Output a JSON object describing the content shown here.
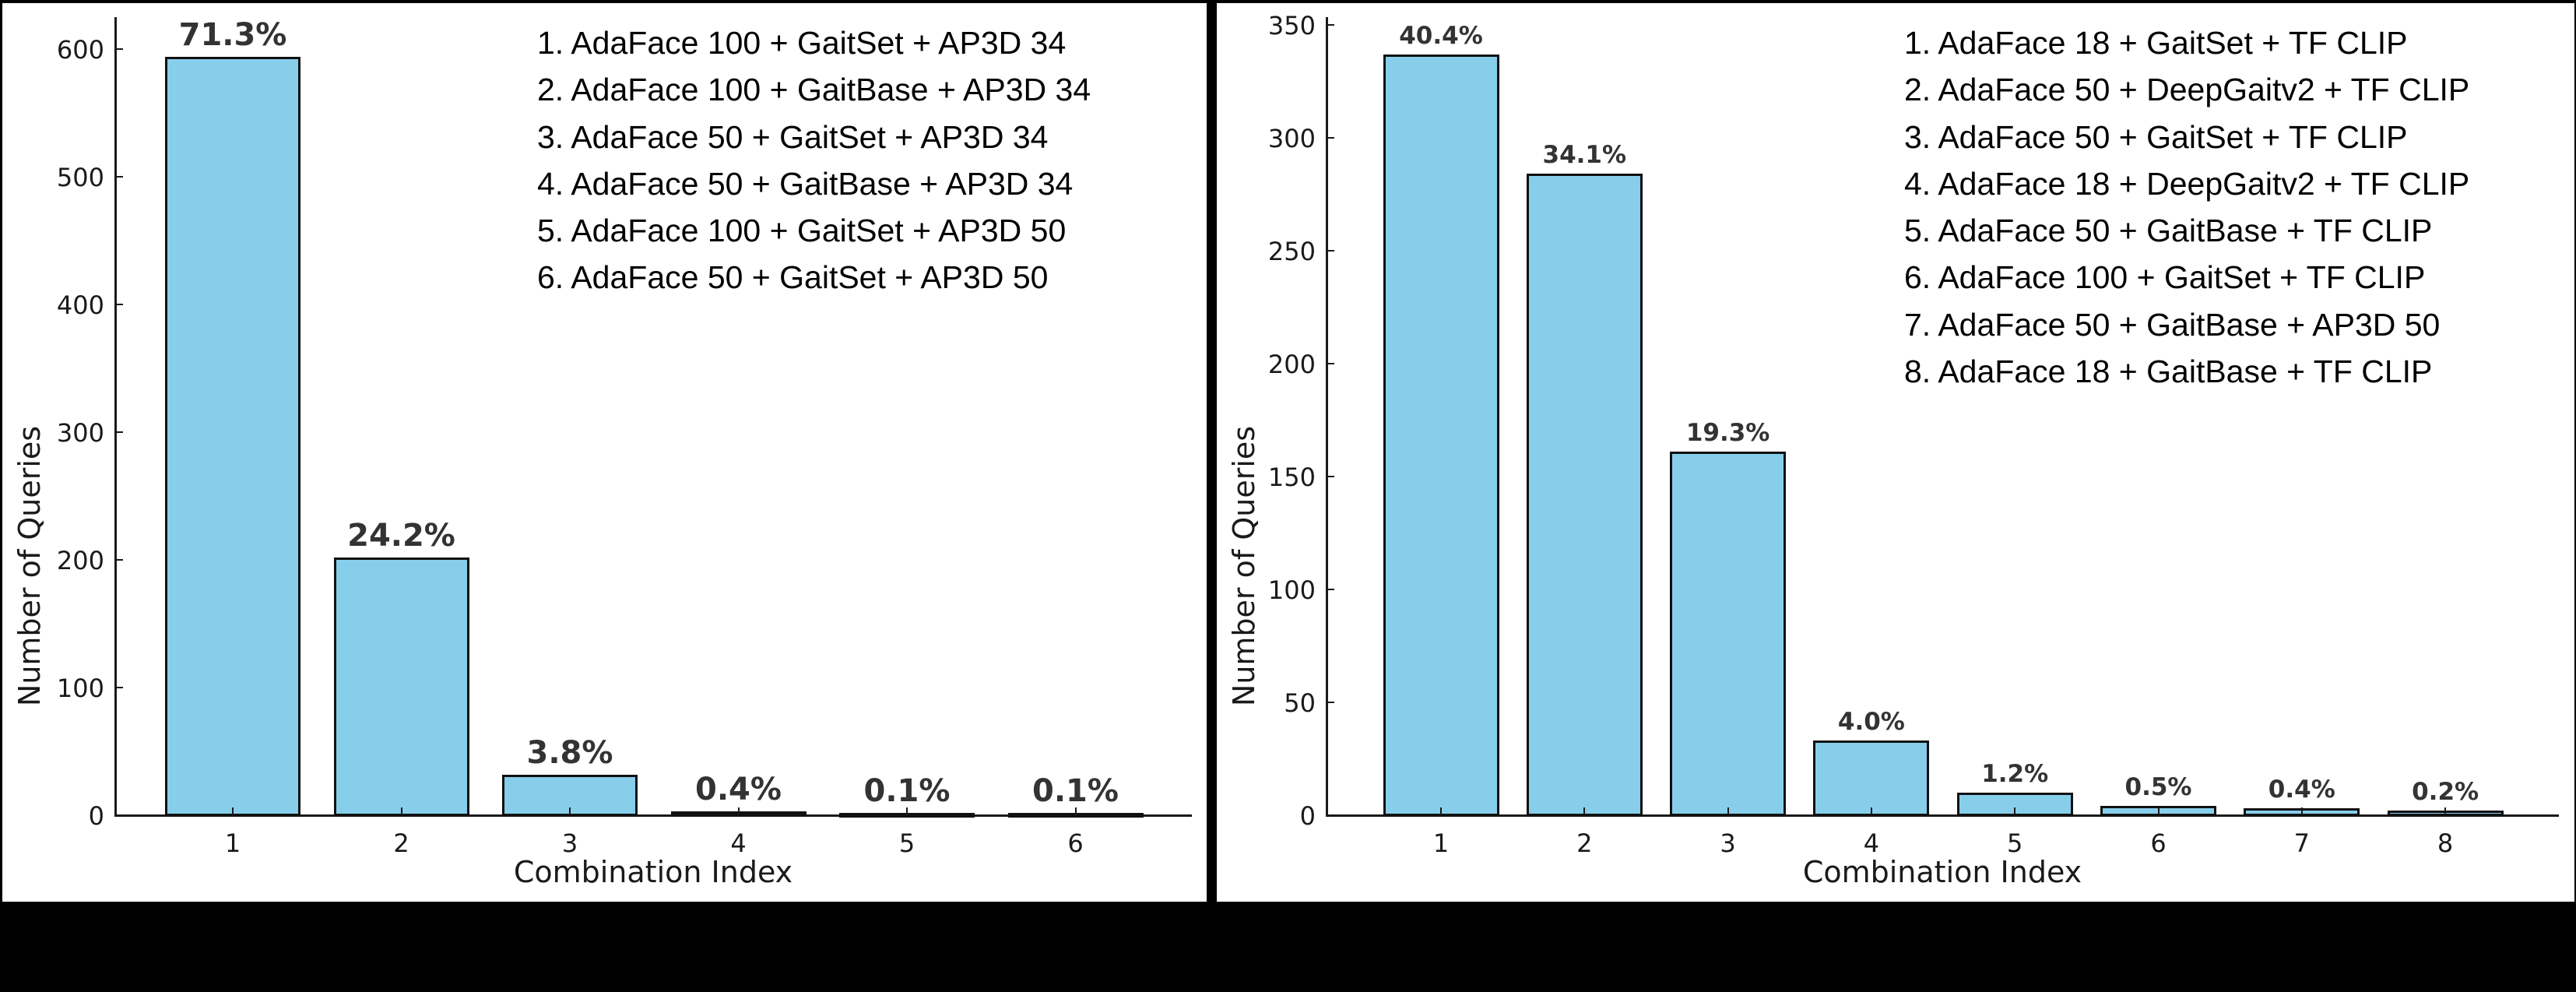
{
  "chart_data": [
    {
      "type": "bar",
      "title": "",
      "xlabel": "Combination Index",
      "ylabel": "Number of Queries",
      "categories": [
        "1",
        "2",
        "3",
        "4",
        "5",
        "6"
      ],
      "values": [
        594,
        202,
        32,
        3,
        1,
        1
      ],
      "percent_labels": [
        "71.3%",
        "24.2%",
        "3.8%",
        "0.4%",
        "0.1%",
        "0.1%"
      ],
      "yticks": [
        0,
        100,
        200,
        300,
        400,
        500,
        600
      ],
      "ylim": [
        0,
        625
      ],
      "grid": false,
      "bar_color": "#87ceeb",
      "legend": [
        "1. AdaFace 100 + GaitSet + AP3D 34",
        "2. AdaFace 100 + GaitBase + AP3D 34",
        "3. AdaFace 50 + GaitSet + AP3D 34",
        "4. AdaFace 50 + GaitBase + AP3D 34",
        "5. AdaFace 100 + GaitSet + AP3D 50",
        "6. AdaFace 50 + GaitSet + AP3D 50"
      ],
      "legend_position": "upper right"
    },
    {
      "type": "bar",
      "title": "",
      "xlabel": "Combination Index",
      "ylabel": "Number of Queries",
      "categories": [
        "1",
        "2",
        "3",
        "4",
        "5",
        "6",
        "7",
        "8"
      ],
      "values": [
        337,
        284,
        161,
        33,
        10,
        4,
        3,
        2
      ],
      "percent_labels": [
        "40.4%",
        "34.1%",
        "19.3%",
        "4.0%",
        "1.2%",
        "0.5%",
        "0.4%",
        "0.2%"
      ],
      "yticks": [
        0,
        50,
        100,
        150,
        200,
        250,
        300,
        350
      ],
      "ylim": [
        0,
        355
      ],
      "grid": false,
      "bar_color": "#87ceeb",
      "legend": [
        "1. AdaFace 18 + GaitSet + TF CLIP",
        "2. AdaFace 50 + DeepGaitv2 + TF CLIP",
        "3. AdaFace 50 + GaitSet + TF CLIP",
        "4. AdaFace 18 + DeepGaitv2 + TF CLIP",
        "5. AdaFace 50 + GaitBase + TF CLIP",
        "6. AdaFace 100 + GaitSet + TF CLIP",
        "7. AdaFace 50 + GaitBase + AP3D 50",
        "8. AdaFace 18 + GaitBase + TF CLIP"
      ],
      "legend_position": "upper right"
    }
  ]
}
